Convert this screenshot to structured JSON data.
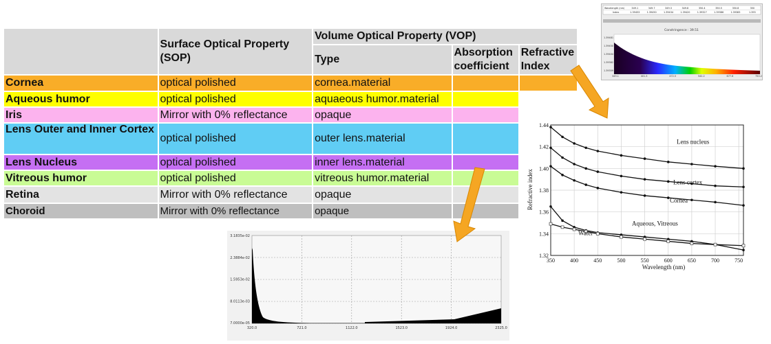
{
  "table": {
    "header": {
      "col1": "",
      "sop": "Surface Optical Property (SOP)",
      "vop": "Volume Optical Property (VOP)",
      "type": "Type",
      "absorption": "Absorption coefficient",
      "refractive": "Refractive Index"
    },
    "rows": [
      {
        "name": "Cornea",
        "sop": "optical polished",
        "type": "cornea.material",
        "color": "#f9ad28"
      },
      {
        "name": "Aqueous humor",
        "sop": "optical polished",
        "type": "aquaeous humor.material",
        "color": "#fefe00"
      },
      {
        "name": "Iris",
        "sop": "Mirror with 0% reflectance",
        "type": "opaque",
        "color": "#fcb3ee"
      },
      {
        "name": "Lens Outer and Inner Cortex",
        "sop": "optical polished",
        "type": "outer lens.material",
        "color": "#60cdf4"
      },
      {
        "name": "Lens Nucleus",
        "sop": "optical polished",
        "type": "inner lens.material",
        "color": "#c56ff3"
      },
      {
        "name": "Vitreous humor",
        "sop": "optical polished",
        "type": "vitreous humor.material",
        "color": "#c9fb95"
      },
      {
        "name": "Retina",
        "sop": "Mirror with 0% reflectance",
        "type": "opaque",
        "color": "#e3e3e3"
      },
      {
        "name": "Choroid",
        "sop": "Mirror with 0% reflectance",
        "type": "opaque",
        "color": "#bfbfbf"
      }
    ]
  },
  "spectrum_panel": {
    "table_labels": [
      "Wavelength (nm)",
      "Index"
    ],
    "wavelengths": [
      "349.1",
      "349.7",
      "349.3",
      "349.8",
      "350.4",
      "350.5",
      "350.8",
      "350"
    ],
    "indices": [
      "1.39453",
      "1.39450",
      "1.39434",
      "1.39420",
      "1.39327",
      "1.39386",
      "1.39383",
      "1.393"
    ],
    "constringence": "Constringence : 39.51",
    "y_ticks": [
      "1.39481",
      "1.39450",
      "1.39404",
      "1.39382",
      "1.39359"
    ],
    "x_ticks": [
      "349.1",
      "401.3",
      "472.5",
      "542.2",
      "677.6",
      "750.2"
    ]
  },
  "histogram": {
    "y_ticks": [
      "3.1835e-02",
      "2.3884e-02",
      "1.5953e-02",
      "8.0113e-03",
      "7.0000e-05"
    ],
    "x_ticks": [
      "320.0",
      "721.0",
      "1122.0",
      "1523.0",
      "1924.0",
      "2325.0"
    ]
  },
  "chart_data": {
    "type": "line",
    "title": "",
    "xlabel": "Wavelength (nm)",
    "ylabel": "Refractive index",
    "xlim": [
      350,
      760
    ],
    "ylim": [
      1.32,
      1.44
    ],
    "x_ticks": [
      350,
      400,
      450,
      500,
      550,
      600,
      650,
      700,
      750
    ],
    "y_ticks": [
      1.32,
      1.34,
      1.36,
      1.38,
      1.4,
      1.42,
      1.44
    ],
    "grid": true,
    "series": [
      {
        "name": "Lens nucleus",
        "x": [
          350,
          375,
          400,
          425,
          450,
          500,
          550,
          600,
          650,
          700,
          760
        ],
        "y": [
          1.438,
          1.429,
          1.423,
          1.419,
          1.416,
          1.412,
          1.409,
          1.406,
          1.404,
          1.402,
          1.4
        ]
      },
      {
        "name": "Lens cortex",
        "x": [
          350,
          375,
          400,
          425,
          450,
          500,
          550,
          600,
          650,
          700,
          760
        ],
        "y": [
          1.419,
          1.41,
          1.404,
          1.4,
          1.397,
          1.393,
          1.39,
          1.388,
          1.386,
          1.384,
          1.383
        ]
      },
      {
        "name": "Cornea",
        "x": [
          350,
          375,
          400,
          425,
          450,
          500,
          550,
          600,
          650,
          700,
          760
        ],
        "y": [
          1.402,
          1.394,
          1.389,
          1.385,
          1.382,
          1.378,
          1.375,
          1.373,
          1.371,
          1.369,
          1.366
        ]
      },
      {
        "name": "Aqueous, Vitreous",
        "x": [
          350,
          375,
          400,
          425,
          450,
          500,
          550,
          600,
          650,
          700,
          760
        ],
        "y": [
          1.365,
          1.352,
          1.346,
          1.343,
          1.341,
          1.339,
          1.337,
          1.335,
          1.333,
          1.33,
          1.325
        ]
      },
      {
        "name": "Water",
        "x": [
          350,
          375,
          400,
          425,
          450,
          500,
          550,
          600,
          650,
          700,
          760
        ],
        "y": [
          1.349,
          1.346,
          1.344,
          1.342,
          1.34,
          1.337,
          1.335,
          1.333,
          1.331,
          1.33,
          1.329
        ]
      }
    ]
  }
}
